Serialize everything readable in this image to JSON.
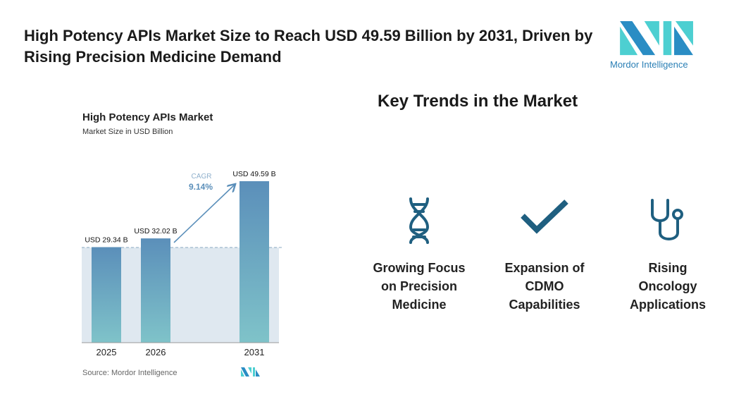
{
  "title": "High Potency APIs Market Size to Reach USD 49.59 Billion by 2031, Driven by Rising Precision Medicine Demand",
  "logo": {
    "text": "Mordor Intelligence"
  },
  "chart_data": {
    "type": "bar",
    "title": "High Potency APIs Market",
    "subtitle": "Market Size in USD Billion",
    "categories": [
      "2025",
      "2026",
      "2031"
    ],
    "values": [
      29.34,
      32.02,
      49.59
    ],
    "data_labels": [
      "USD 29.34 B",
      "USD 32.02 B",
      "USD 49.59 B"
    ],
    "annotation": {
      "label": "CAGR",
      "value": "9.14%"
    },
    "ylim": [
      0,
      50
    ],
    "source": "Source: Mordor Intelligence",
    "colors": {
      "bar_top": "#5b8fba",
      "bar_bottom": "#7fc3c9",
      "band": "#dfe8f0",
      "accent": "#5b8fba"
    }
  },
  "key_trends": {
    "heading": "Key Trends in the Market",
    "items": [
      {
        "icon": "dna-icon",
        "label": "Growing Focus on Precision Medicine"
      },
      {
        "icon": "checkmark-icon",
        "label": "Expansion of CDMO Capabilities"
      },
      {
        "icon": "stethoscope-icon",
        "label": "Rising Oncology Applications"
      }
    ],
    "icon_color": "#1f5f80"
  }
}
